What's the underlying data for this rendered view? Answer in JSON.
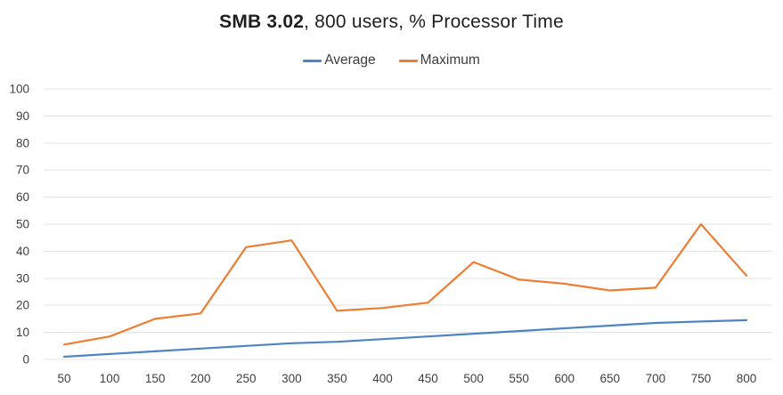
{
  "chart_data": {
    "type": "line",
    "title": "SMB 3.02, 800 users, % Processor Time",
    "title_bold": "SMB 3.02",
    "title_rest": ", 800 users, % Processor Time",
    "categories": [
      50,
      100,
      150,
      200,
      250,
      300,
      350,
      400,
      450,
      500,
      550,
      600,
      650,
      700,
      750,
      800
    ],
    "series": [
      {
        "name": "Average",
        "color": "#4d85c4",
        "values": [
          1,
          2,
          3,
          4,
          5,
          6,
          6.5,
          7.5,
          8.5,
          9.5,
          10.5,
          11.5,
          12.5,
          13.5,
          14,
          14.5
        ]
      },
      {
        "name": "Maximum",
        "color": "#ed7d31",
        "values": [
          5.5,
          8.5,
          15,
          17,
          41.5,
          44,
          18,
          19,
          21,
          36,
          29.5,
          28,
          25.5,
          26.5,
          50,
          31
        ]
      }
    ],
    "xlabel": "",
    "ylabel": "",
    "ylim": [
      0,
      100
    ],
    "ytick_step": 10,
    "grid": true,
    "legend_position": "top",
    "gridline_color": "#e3e3e3",
    "tick_label_color": "#3f3f3f",
    "title_color": "#1f1f1f"
  }
}
